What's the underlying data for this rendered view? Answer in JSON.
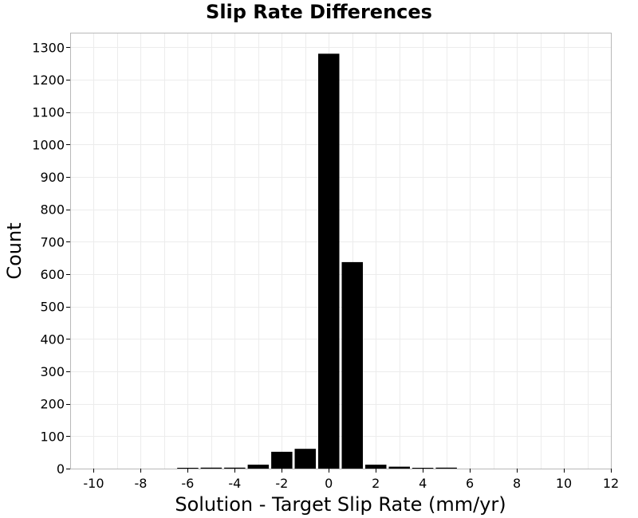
{
  "chart_data": {
    "type": "bar",
    "title": "Slip Rate Differences",
    "xlabel": "Solution - Target Slip Rate (mm/yr)",
    "ylabel": "Count",
    "xlim": [
      -11,
      12
    ],
    "ylim": [
      0,
      1345
    ],
    "x_ticks": [
      -10,
      -8,
      -6,
      -4,
      -2,
      0,
      2,
      4,
      6,
      8,
      10,
      12
    ],
    "y_ticks": [
      0,
      100,
      200,
      300,
      400,
      500,
      600,
      700,
      800,
      900,
      1000,
      1100,
      1200,
      1300
    ],
    "x_tick_labels": [
      "-10",
      "-8",
      "-6",
      "-4",
      "-2",
      "0",
      "2",
      "4",
      "6",
      "8",
      "10",
      "12"
    ],
    "y_tick_labels": [
      "0",
      "100",
      "200",
      "300",
      "400",
      "500",
      "600",
      "700",
      "800",
      "900",
      "1000",
      "1100",
      "1200",
      "1300"
    ],
    "grid": true,
    "bar_color": "#000000",
    "bins": [
      {
        "x": -6,
        "count": 1
      },
      {
        "x": -5,
        "count": 3
      },
      {
        "x": -4,
        "count": 3
      },
      {
        "x": -3,
        "count": 12
      },
      {
        "x": -2,
        "count": 52
      },
      {
        "x": -1,
        "count": 61
      },
      {
        "x": 0,
        "count": 1280
      },
      {
        "x": 1,
        "count": 637
      },
      {
        "x": 2,
        "count": 12
      },
      {
        "x": 3,
        "count": 6
      },
      {
        "x": 4,
        "count": 1
      },
      {
        "x": 5,
        "count": 3
      }
    ]
  }
}
